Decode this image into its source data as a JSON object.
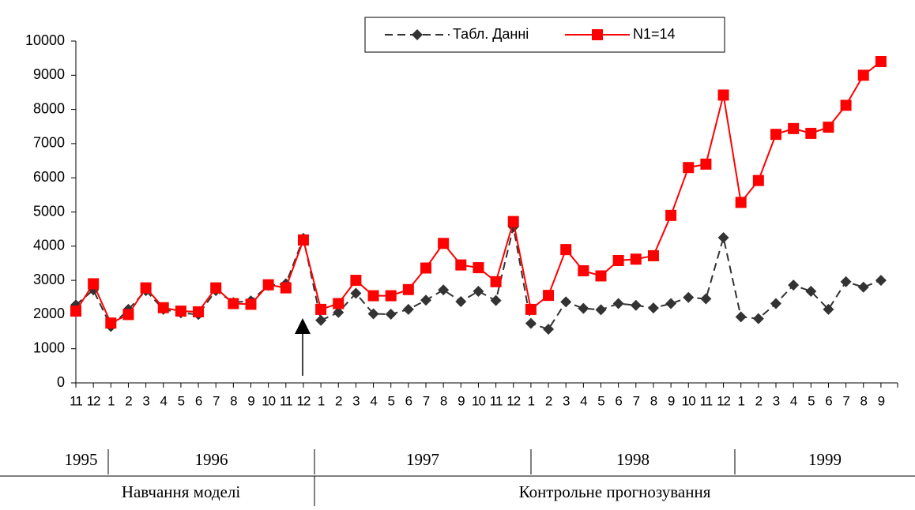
{
  "chart_data": {
    "type": "line",
    "categories": [
      "11",
      "12",
      "1",
      "2",
      "3",
      "4",
      "5",
      "6",
      "7",
      "8",
      "9",
      "10",
      "11",
      "12",
      "1",
      "2",
      "3",
      "4",
      "5",
      "6",
      "7",
      "8",
      "9",
      "10",
      "11",
      "12",
      "1",
      "2",
      "3",
      "4",
      "5",
      "6",
      "7",
      "8",
      "9",
      "10",
      "11",
      "12",
      "1",
      "2",
      "3",
      "4",
      "5",
      "6",
      "7",
      "8",
      "9"
    ],
    "series": [
      {
        "name": "Табл. Данні",
        "color": "#333333",
        "dash": true,
        "marker": "diamond",
        "values": [
          2280,
          2720,
          1650,
          2150,
          2700,
          2150,
          2050,
          2000,
          2700,
          2350,
          2400,
          2850,
          2900,
          4230,
          1830,
          2060,
          2620,
          2020,
          2010,
          2150,
          2420,
          2720,
          2380,
          2680,
          2410,
          4560,
          1740,
          1570,
          2370,
          2180,
          2140,
          2320,
          2270,
          2190,
          2320,
          2500,
          2460,
          4250,
          1930,
          1880,
          2320,
          2860,
          2680,
          2150,
          2960,
          2800,
          3000
        ]
      },
      {
        "name": "N1=14",
        "color": "#ff0000",
        "dash": false,
        "marker": "square",
        "values": [
          2100,
          2900,
          1750,
          2000,
          2780,
          2200,
          2100,
          2080,
          2780,
          2320,
          2300,
          2870,
          2780,
          4180,
          2150,
          2320,
          3000,
          2550,
          2550,
          2730,
          3360,
          4080,
          3450,
          3370,
          2960,
          4720,
          2150,
          2560,
          3900,
          3280,
          3130,
          3580,
          3620,
          3720,
          4900,
          6300,
          6400,
          8420,
          5280,
          5920,
          7270,
          7440,
          7300,
          7480,
          8120,
          9000,
          9400
        ]
      }
    ],
    "ylim": [
      0,
      10000
    ],
    "yticks": [
      0,
      1000,
      2000,
      3000,
      4000,
      5000,
      6000,
      7000,
      8000,
      9000,
      10000
    ],
    "grid": false,
    "legend": "top",
    "years": [
      "1995",
      "1996",
      "1997",
      "1998",
      "1999"
    ],
    "phases": [
      "Навчання моделі",
      "Контрольне прогнозування"
    ]
  }
}
